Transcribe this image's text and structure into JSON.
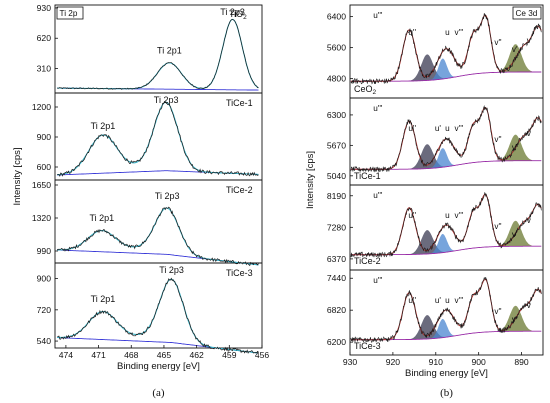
{
  "figure": {
    "caption_left": "(a)",
    "caption_right": "(b)"
  },
  "colors": {
    "spectrum": "#1a1a1a",
    "fit": "#3ab4c8",
    "background": "#3b3bd8",
    "envelope_ce": "#a8322f",
    "background_ce": "#9a2fa8",
    "fill_dark": "#3a3a52",
    "fill_olive": "#6b7a32",
    "fill_blue": "#4a86d0"
  },
  "chart_data": [
    {
      "type": "line",
      "panel": "a",
      "legend_box": "Ti 2p",
      "xlabel": "Binding energy [eV]",
      "ylabel": "Intensity [cps]",
      "xlim": [
        475,
        456
      ],
      "x_ticks": [
        "474",
        "471",
        "468",
        "465",
        "462",
        "459",
        "456"
      ],
      "subplots": [
        {
          "sample": "TiO2",
          "y_ticks": [
            "930",
            "620",
            "310"
          ],
          "ylim": [
            60,
            960
          ],
          "peaks": [
            {
              "label": "Ti 2p1",
              "x": 464.5,
              "y": 380
            },
            {
              "label": "Ti 2p3",
              "x": 458.7,
              "y": 830
            }
          ],
          "baseline": [
            110,
            90
          ]
        },
        {
          "sample": "TiCe-1",
          "y_ticks": [
            "1200",
            "900",
            "600"
          ],
          "ylim": [
            470,
            1340
          ],
          "peaks": [
            {
              "label": "Ti 2p1",
              "x": 470.6,
              "y": 900
            },
            {
              "label": "Ti 2p3",
              "x": 464.8,
              "y": 1190
            }
          ],
          "baseline": [
            520,
            600
          ]
        },
        {
          "sample": "TiCe-2",
          "y_ticks": [
            "1650",
            "1320",
            "990"
          ],
          "ylim": [
            870,
            1700
          ],
          "peaks": [
            {
              "label": "Ti 2p1",
              "x": 470.7,
              "y": 1210
            },
            {
              "label": "Ti 2p3",
              "x": 464.7,
              "y": 1450
            }
          ],
          "baseline": [
            1000,
            920
          ]
        },
        {
          "sample": "TiCe-3",
          "y_ticks": [
            "900",
            "720",
            "540"
          ],
          "ylim": [
            500,
            990
          ],
          "peaks": [
            {
              "label": "Ti 2p1",
              "x": 470.6,
              "y": 720
            },
            {
              "label": "Ti 2p3",
              "x": 464.3,
              "y": 920
            }
          ],
          "baseline": [
            560,
            510
          ]
        }
      ]
    },
    {
      "type": "line",
      "panel": "b",
      "legend_box": "Ce 3d",
      "xlabel": "Binding energy [eV]",
      "ylabel": "Intensity [cps]",
      "xlim": [
        930,
        885
      ],
      "x_ticks": [
        "930",
        "920",
        "910",
        "900",
        "890"
      ],
      "subplots": [
        {
          "sample": "CeO2",
          "y_ticks": [
            "6400",
            "5600",
            "4800"
          ],
          "ylim": [
            4300,
            6700
          ],
          "peak_labels": [
            "u'''",
            "u''",
            "u",
            "v'''",
            "v''",
            "v'",
            "v"
          ]
        },
        {
          "sample": "TiCe-1",
          "y_ticks": [
            "6300",
            "5670",
            "5040"
          ],
          "ylim": [
            4850,
            6650
          ],
          "peak_labels": [
            "u'''",
            "u''",
            "u'",
            "u",
            "v'''",
            "v''",
            "v'",
            "v"
          ]
        },
        {
          "sample": "TiCe-2",
          "y_ticks": [
            "8190",
            "7280",
            "6370"
          ],
          "ylim": [
            6050,
            8500
          ],
          "peak_labels": [
            "u'''",
            "u''",
            "u",
            "v'''",
            "v''",
            "v'",
            "v"
          ]
        },
        {
          "sample": "TiCe-3",
          "y_ticks": [
            "7440",
            "6820",
            "6200"
          ],
          "ylim": [
            5950,
            7600
          ],
          "peak_labels": [
            "u'''",
            "u''",
            "u'",
            "u",
            "v'''",
            "v''",
            "v'",
            "v"
          ]
        }
      ]
    }
  ]
}
